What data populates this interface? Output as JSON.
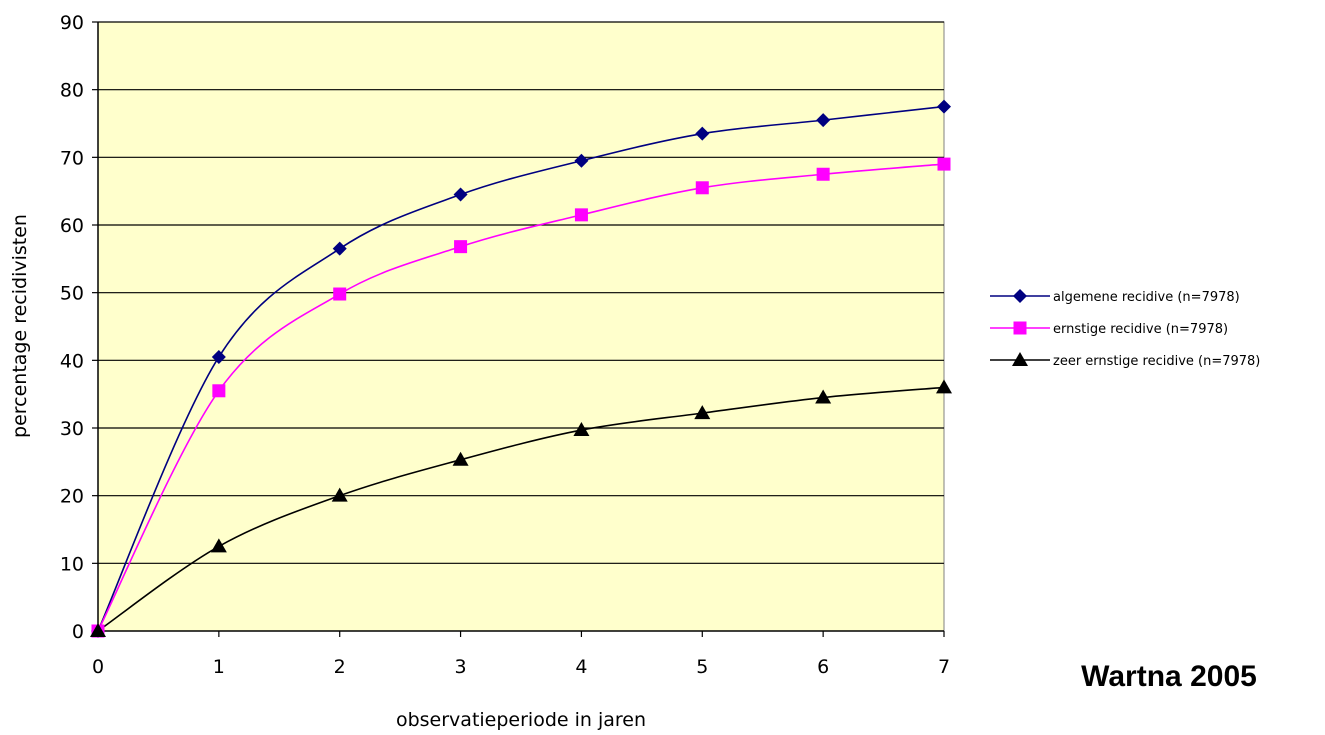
{
  "chart_data": {
    "type": "line",
    "title": "",
    "xlabel": "observatieperiode in jaren",
    "ylabel": "percentage recidivisten",
    "x": [
      0,
      1,
      2,
      3,
      4,
      5,
      6,
      7
    ],
    "xlim": [
      0,
      7
    ],
    "ylim": [
      0,
      90
    ],
    "yticks": [
      0,
      10,
      20,
      30,
      40,
      50,
      60,
      70,
      80,
      90
    ],
    "grid": true,
    "legend_position": "right",
    "background_color": "#ffffcc",
    "series": [
      {
        "name": "algemene recidive (n=7978)",
        "color": "#000080",
        "marker": "diamond",
        "values": [
          0,
          40.5,
          56.5,
          64.5,
          69.5,
          73.5,
          75.5,
          77.5
        ]
      },
      {
        "name": "ernstige recidive (n=7978)",
        "color": "#ff00ff",
        "marker": "square",
        "values": [
          0,
          35.5,
          49.8,
          56.8,
          61.5,
          65.5,
          67.5,
          69
        ]
      },
      {
        "name": "zeer ernstige recidive (n=7978)",
        "color": "#000000",
        "marker": "triangle",
        "values": [
          0,
          12.5,
          20,
          25.3,
          29.7,
          32.2,
          34.5,
          36
        ]
      }
    ]
  },
  "credit": "Wartna 2005"
}
